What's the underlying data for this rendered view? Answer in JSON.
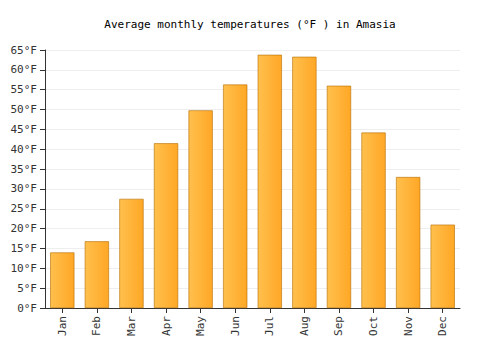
{
  "chart_data": {
    "type": "bar",
    "title": "Average monthly temperatures (°F ) in Amasia",
    "categories": [
      "Jan",
      "Feb",
      "Mar",
      "Apr",
      "May",
      "Jun",
      "Jul",
      "Aug",
      "Sep",
      "Oct",
      "Nov",
      "Dec"
    ],
    "values": [
      14,
      16.8,
      27.5,
      41.5,
      49.8,
      56.3,
      63.8,
      63.3,
      56,
      44.2,
      33,
      21
    ],
    "color": "#ffa726",
    "ylim": [
      0,
      65
    ],
    "yticks": [
      {
        "value": 0,
        "label": "0°F"
      },
      {
        "value": 5,
        "label": "5°F"
      },
      {
        "value": 10,
        "label": "10°F"
      },
      {
        "value": 15,
        "label": "15°F"
      },
      {
        "value": 20,
        "label": "20°F"
      },
      {
        "value": 25,
        "label": "25°F"
      },
      {
        "value": 30,
        "label": "30°F"
      },
      {
        "value": 35,
        "label": "35°F"
      },
      {
        "value": 40,
        "label": "40°F"
      },
      {
        "value": 45,
        "label": "45°F"
      },
      {
        "value": 50,
        "label": "50°F"
      },
      {
        "value": 55,
        "label": "55°F"
      },
      {
        "value": 60,
        "label": "60°F"
      },
      {
        "value": 65,
        "label": "65°F"
      }
    ],
    "grid": true
  }
}
